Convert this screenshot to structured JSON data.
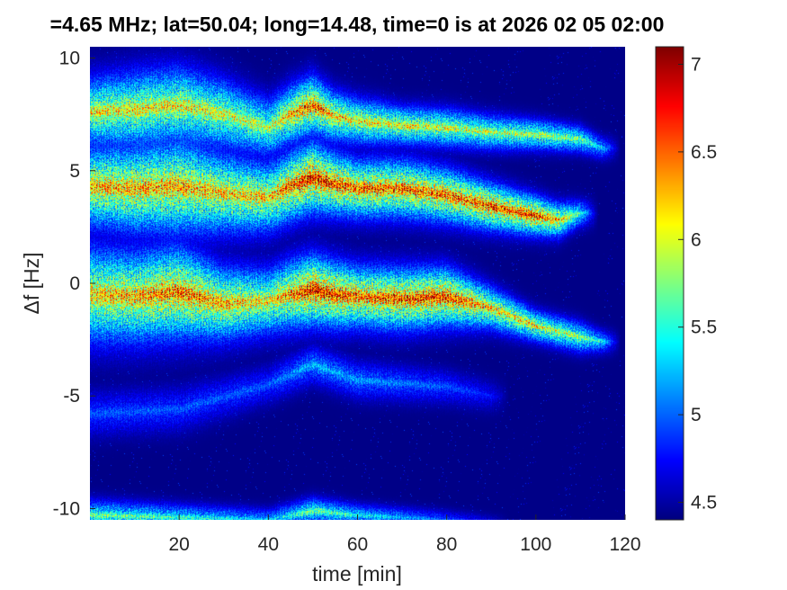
{
  "chart_data": {
    "type": "heatmap",
    "title": "=4.65 MHz;  lat=50.04; long=14.48, time=0 is at 2026 02 05 02:00",
    "xlabel": "time [min]",
    "ylabel": "Δf [Hz]",
    "xlim": [
      0,
      120
    ],
    "ylim": [
      -10.5,
      10.5
    ],
    "x_ticks": [
      20,
      40,
      60,
      80,
      100,
      120
    ],
    "x_tick_labels": [
      "20",
      "40",
      "60",
      "80",
      "100",
      "120"
    ],
    "y_ticks": [
      10,
      5,
      0,
      -5,
      -10
    ],
    "y_tick_labels": [
      "10",
      "5",
      "0",
      "-5",
      "-10"
    ],
    "colormap": "jet",
    "background_color": "#00008f",
    "color_limits": [
      4.4,
      7.1
    ],
    "colorbar_ticks": [
      7,
      6.5,
      6,
      5.5,
      5,
      4.5
    ],
    "colorbar_tick_labels": [
      "7",
      "6.5",
      "6",
      "5.5",
      "5",
      "4.5"
    ],
    "grid": false,
    "traces": [
      {
        "name": "upper trace",
        "time_min": [
          0,
          10,
          20,
          30,
          40,
          45,
          50,
          55,
          60,
          70,
          80,
          90,
          100,
          110,
          115
        ],
        "delta_f_hz": [
          7.6,
          7.7,
          7.9,
          7.5,
          6.9,
          7.5,
          7.9,
          7.4,
          7.2,
          7.0,
          6.9,
          6.7,
          6.6,
          6.4,
          6.0
        ],
        "width_hz": [
          1.8,
          2.0,
          2.0,
          1.8,
          1.5,
          1.5,
          1.5,
          1.3,
          1.2,
          1.0,
          1.0,
          0.9,
          0.8,
          0.7,
          0.6
        ],
        "peak": [
          6.2,
          6.2,
          6.2,
          6.1,
          6.0,
          6.4,
          6.7,
          6.3,
          6.2,
          6.2,
          6.1,
          6.0,
          6.0,
          5.8,
          5.3
        ]
      },
      {
        "name": "middle trace",
        "time_min": [
          0,
          10,
          20,
          30,
          40,
          45,
          50,
          55,
          60,
          70,
          80,
          90,
          100,
          105,
          110
        ],
        "delta_f_hz": [
          4.3,
          4.2,
          4.3,
          4.0,
          3.8,
          4.3,
          4.7,
          4.4,
          4.2,
          4.2,
          3.9,
          3.4,
          3.0,
          2.8,
          3.1
        ],
        "width_hz": [
          2.1,
          2.3,
          2.5,
          2.1,
          1.8,
          1.8,
          1.8,
          1.6,
          1.5,
          1.5,
          1.4,
          1.2,
          1.0,
          0.9,
          0.7
        ],
        "peak": [
          6.4,
          6.4,
          6.4,
          6.3,
          6.3,
          6.6,
          6.9,
          6.7,
          6.6,
          6.6,
          6.6,
          6.7,
          6.8,
          6.4,
          5.6
        ]
      },
      {
        "name": "lower trace",
        "time_min": [
          0,
          10,
          20,
          30,
          40,
          45,
          50,
          55,
          60,
          70,
          80,
          90,
          100,
          110,
          115
        ],
        "delta_f_hz": [
          -0.5,
          -0.6,
          -0.4,
          -0.9,
          -0.8,
          -0.5,
          -0.3,
          -0.5,
          -0.6,
          -0.7,
          -0.6,
          -1.1,
          -1.9,
          -2.4,
          -2.6
        ],
        "width_hz": [
          2.5,
          2.4,
          2.4,
          1.9,
          1.7,
          1.8,
          1.8,
          1.7,
          1.6,
          1.6,
          1.5,
          1.1,
          0.8,
          0.8,
          0.6
        ],
        "peak": [
          6.3,
          6.4,
          6.6,
          6.4,
          6.2,
          6.5,
          6.9,
          6.8,
          6.6,
          6.7,
          6.8,
          6.3,
          6.2,
          5.9,
          5.4
        ]
      },
      {
        "name": "faint trace",
        "time_min": [
          0,
          20,
          40,
          50,
          60,
          80,
          90
        ],
        "delta_f_hz": [
          -5.8,
          -5.6,
          -4.5,
          -3.6,
          -4.3,
          -4.6,
          -5.0
        ],
        "width_hz": [
          1.2,
          1.2,
          1.0,
          1.0,
          1.0,
          0.9,
          0.8
        ],
        "peak": [
          5.0,
          5.0,
          5.0,
          5.3,
          5.2,
          5.0,
          4.8
        ]
      },
      {
        "name": "bottom trace",
        "time_min": [
          0,
          20,
          40,
          50,
          60,
          80,
          90
        ],
        "delta_f_hz": [
          -10.3,
          -10.4,
          -10.5,
          -10.1,
          -10.3,
          -10.5,
          -10.6
        ],
        "width_hz": [
          0.8,
          0.7,
          0.6,
          0.7,
          0.6,
          0.5,
          0.4
        ],
        "peak": [
          5.8,
          5.6,
          5.3,
          5.8,
          5.5,
          5.0,
          4.7
        ]
      }
    ]
  }
}
